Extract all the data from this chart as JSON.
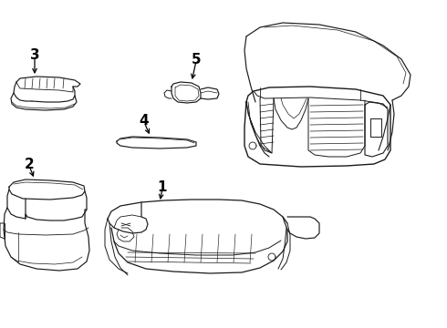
{
  "bg_color": "#ffffff",
  "line_color": "#1a1a1a",
  "figsize": [
    4.9,
    3.6
  ],
  "dpi": 100
}
